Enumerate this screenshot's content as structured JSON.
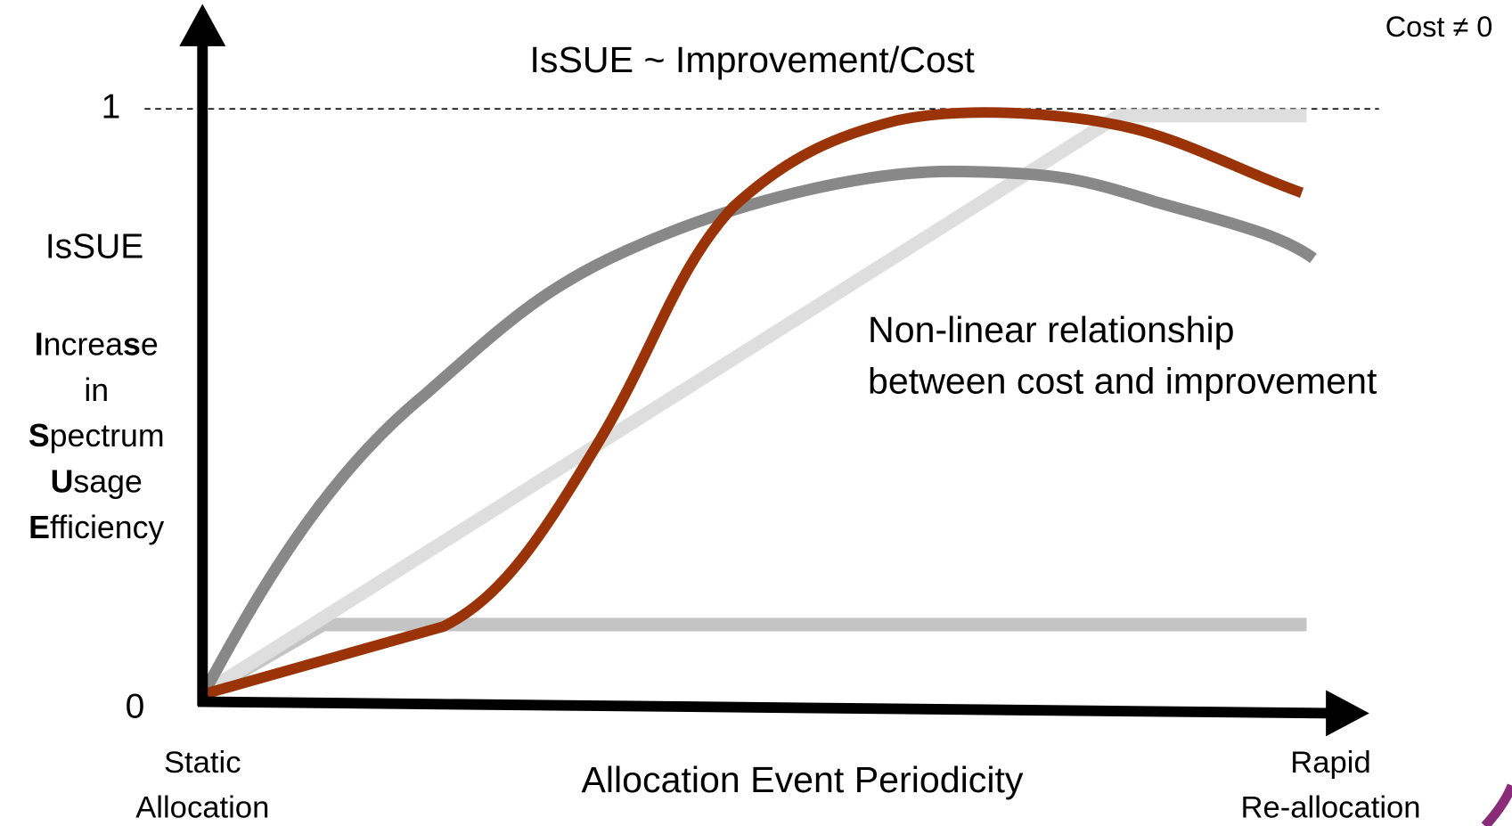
{
  "title": "IsSUE ~ Improvement/Cost",
  "note": "Cost ≠ 0",
  "y_axis": {
    "label": "IsSUE",
    "ticks": [
      "1",
      "0"
    ],
    "description": [
      [
        {
          "text": "I",
          "bold": true
        },
        {
          "text": "ncrea"
        },
        {
          "text": "s",
          "bold": true
        },
        {
          "text": "e"
        }
      ],
      [
        {
          "text": "in"
        }
      ],
      [
        {
          "text": "S",
          "bold": true
        },
        {
          "text": "pectrum"
        }
      ],
      [
        {
          "text": "U",
          "bold": true
        },
        {
          "text": "sage"
        }
      ],
      [
        {
          "text": "E",
          "bold": true
        },
        {
          "text": "fficiency"
        }
      ]
    ]
  },
  "x_axis": {
    "label": "Allocation Event Periodicity",
    "start": [
      "Static",
      "Allocation"
    ],
    "end": [
      "Rapid",
      "Re-allocation"
    ]
  },
  "annotation": [
    "Non-linear relationship",
    "between cost and improvement"
  ]
}
